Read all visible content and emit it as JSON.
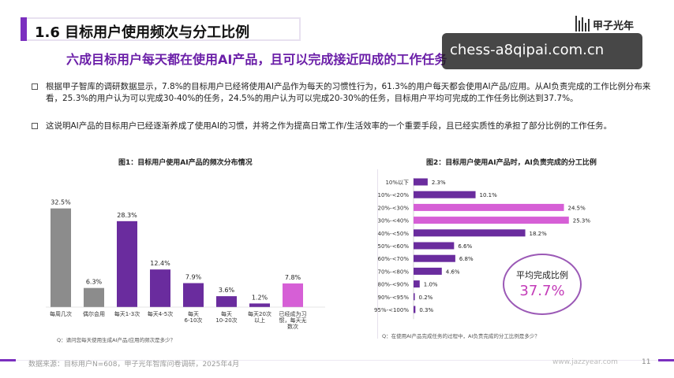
{
  "header": {
    "title": "1.6 目标用户使用频次与分工比例",
    "logo_text": "甲子光年"
  },
  "watermark": "chess-a8qipai.com.cn",
  "subtitle": "六成目标用户每天都在使用AI产品，且可以完成接近四成的工作任务",
  "bullets": [
    "根据甲子智库的调研数据显示，7.8%的目标用户已经将使用AI产品作为每天的习惯性行为，61.3%的用户每天都会使用AI产品/应用。从AI负责完成的工作比例分布来看，25.3%的用户认为可以完成30-40%的任务，24.5%的用户认为可以完成20-30%的任务，目标用户平均可完成的工作任务比例达到37.7%。",
    "这说明AI产品的目标用户已经逐渐养成了使用AI的习惯，并将之作为提高日常工作/生活效率的一个重要手段，且已经实质性的承担了部分比例的工作任务。"
  ],
  "colors": {
    "accent": "#7b2fbf",
    "bar_gray": "#8c8c8c",
    "bar_purple": "#6a2c9e",
    "bar_pink": "#d65fd6",
    "subtitle": "#6b1fa8"
  },
  "chart_data": [
    {
      "type": "bar",
      "title": "图1：目标用户使用AI产品的频次分布情况",
      "question": "Q：请问您每天使用生成AI产品/应用的频次是多少？",
      "categories": [
        "每周几次",
        "偶尔会用",
        "每天1-3次",
        "每天4-5次",
        "每天\n6-10次",
        "每天\n10-20次",
        "每天20次\n以上",
        "已经成为习\n惯，每天无\n数次"
      ],
      "values": [
        32.5,
        6.3,
        28.3,
        12.4,
        7.9,
        3.6,
        1.2,
        7.8
      ],
      "labels": [
        "32.5%",
        "6.3%",
        "28.3%",
        "12.4%",
        "7.9%",
        "3.6%",
        "1.2%",
        "7.8%"
      ],
      "bar_colors": [
        "gray",
        "gray",
        "purple",
        "purple",
        "purple",
        "purple",
        "purple",
        "pink"
      ],
      "ylim": [
        0,
        35
      ]
    },
    {
      "type": "bar",
      "orientation": "horizontal",
      "title": "图2：目标用户使用AI产品时，AI负责完成的分工比例",
      "question": "Q：在使用AI产品完成任务的过程中，AI负责完成的分工比例是多少？",
      "categories": [
        "10%以下",
        "10%-<20%",
        "20%-<30%",
        "30%-<40%",
        "40%-<50%",
        "50%-<60%",
        "60%-<70%",
        "70%-<80%",
        "80%-<90%",
        "90%-<95%",
        "95%-<100%"
      ],
      "values": [
        2.3,
        10.1,
        24.5,
        25.3,
        18.2,
        6.6,
        6.8,
        4.6,
        1.0,
        0.2,
        0.3
      ],
      "labels": [
        "2.3%",
        "10.1%",
        "24.5%",
        "25.3%",
        "18.2%",
        "6.6%",
        "6.8%",
        "4.6%",
        "1.0%",
        "0.2%",
        "0.3%"
      ],
      "bar_colors": [
        "purple",
        "purple",
        "pink",
        "pink",
        "purple",
        "purple",
        "purple",
        "purple",
        "purple",
        "purple",
        "purple"
      ],
      "xlim": [
        0,
        27
      ],
      "average_label": "平均完成比例",
      "average_value": "37.7%"
    }
  ],
  "footer": {
    "source": "数据来源：目标用户N=608，甲子光年智库问卷调研，2025年4月",
    "site": "www.jazzyear.com",
    "page": "11"
  }
}
